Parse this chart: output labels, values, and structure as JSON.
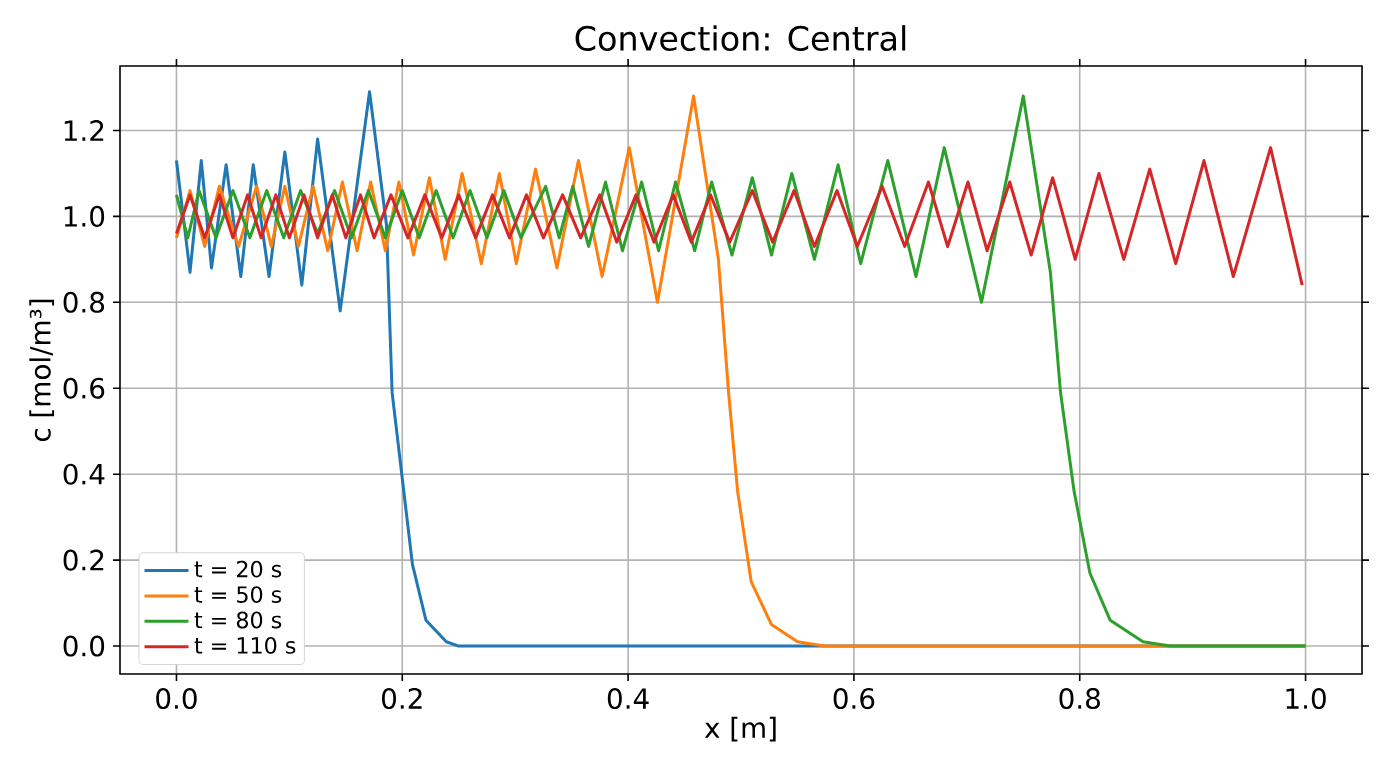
{
  "chart_data": {
    "type": "line",
    "title": "Convection: Central",
    "xlabel": "x [m]",
    "ylabel": "c [mol/m³]",
    "xlim": [
      -0.05,
      1.05
    ],
    "ylim": [
      -0.065,
      1.35
    ],
    "xticks": [
      {
        "value": 0,
        "label": "0.0"
      },
      {
        "value": 0.2,
        "label": "0.2"
      },
      {
        "value": 0.4,
        "label": "0.4"
      },
      {
        "value": 0.6,
        "label": "0.6"
      },
      {
        "value": 0.8,
        "label": "0.8"
      },
      {
        "value": 1,
        "label": "1.0"
      }
    ],
    "yticks": [
      {
        "value": 0,
        "label": "0.0"
      },
      {
        "value": 0.2,
        "label": "0.2"
      },
      {
        "value": 0.4,
        "label": "0.4"
      },
      {
        "value": 0.6,
        "label": "0.6"
      },
      {
        "value": 0.8,
        "label": "0.8"
      },
      {
        "value": 1,
        "label": "1.0"
      },
      {
        "value": 1.2,
        "label": "1.2"
      }
    ],
    "grid": true,
    "legend": "bottom left",
    "series": [
      {
        "name": "t = 20 s",
        "color": "#1f77b4",
        "x": [
          0,
          0.012,
          0.022,
          0.031,
          0.044,
          0.057,
          0.068,
          0.082,
          0.096,
          0.111,
          0.125,
          0.145,
          0.171,
          0.186,
          0.191,
          0.2,
          0.209,
          0.221,
          0.239,
          0.25,
          1.0
        ],
        "values": [
          1.13,
          0.87,
          1.13,
          0.88,
          1.12,
          0.86,
          1.12,
          0.86,
          1.15,
          0.84,
          1.18,
          0.78,
          1.29,
          0.98,
          0.59,
          0.39,
          0.19,
          0.06,
          0.01,
          0.0,
          0.0
        ]
      },
      {
        "name": "t = 50 s",
        "color": "#ff7f0e",
        "x": [
          0,
          0.012,
          0.025,
          0.038,
          0.055,
          0.071,
          0.084,
          0.096,
          0.108,
          0.121,
          0.134,
          0.147,
          0.16,
          0.172,
          0.185,
          0.197,
          0.21,
          0.224,
          0.238,
          0.253,
          0.27,
          0.286,
          0.301,
          0.318,
          0.337,
          0.356,
          0.377,
          0.401,
          0.426,
          0.458,
          0.48,
          0.489,
          0.497,
          0.509,
          0.527,
          0.55,
          0.574,
          1.0
        ],
        "values": [
          0.95,
          1.06,
          0.93,
          1.07,
          0.93,
          1.07,
          0.93,
          1.07,
          0.93,
          1.07,
          0.92,
          1.08,
          0.92,
          1.08,
          0.92,
          1.08,
          0.91,
          1.09,
          0.9,
          1.1,
          0.89,
          1.1,
          0.89,
          1.11,
          0.88,
          1.13,
          0.86,
          1.16,
          0.8,
          1.28,
          0.9,
          0.59,
          0.36,
          0.15,
          0.05,
          0.01,
          0.0,
          0.0
        ]
      },
      {
        "name": "t = 80 s",
        "color": "#2ca02c",
        "x": [
          0,
          0.01,
          0.02,
          0.035,
          0.05,
          0.065,
          0.08,
          0.095,
          0.11,
          0.125,
          0.14,
          0.155,
          0.17,
          0.185,
          0.2,
          0.215,
          0.23,
          0.245,
          0.26,
          0.275,
          0.29,
          0.305,
          0.327,
          0.339,
          0.351,
          0.365,
          0.38,
          0.395,
          0.412,
          0.427,
          0.442,
          0.459,
          0.474,
          0.492,
          0.51,
          0.527,
          0.545,
          0.565,
          0.586,
          0.606,
          0.63,
          0.655,
          0.68,
          0.713,
          0.75,
          0.774,
          0.783,
          0.795,
          0.809,
          0.827,
          0.856,
          0.88,
          1.0
        ],
        "values": [
          1.05,
          0.95,
          1.06,
          0.95,
          1.06,
          0.95,
          1.06,
          0.95,
          1.06,
          0.96,
          1.06,
          0.95,
          1.06,
          0.95,
          1.06,
          0.95,
          1.06,
          0.95,
          1.06,
          0.95,
          1.06,
          0.95,
          1.07,
          0.95,
          1.07,
          0.93,
          1.08,
          0.92,
          1.08,
          0.92,
          1.08,
          0.92,
          1.08,
          0.91,
          1.09,
          0.91,
          1.1,
          0.9,
          1.12,
          0.89,
          1.13,
          0.86,
          1.16,
          0.8,
          1.28,
          0.87,
          0.59,
          0.36,
          0.17,
          0.06,
          0.01,
          0.0,
          0.0
        ]
      },
      {
        "name": "t = 110 s",
        "color": "#d62728",
        "x": [
          0,
          0.012,
          0.025,
          0.038,
          0.05,
          0.063,
          0.075,
          0.088,
          0.1,
          0.113,
          0.125,
          0.138,
          0.15,
          0.163,
          0.175,
          0.19,
          0.205,
          0.22,
          0.235,
          0.25,
          0.265,
          0.28,
          0.295,
          0.31,
          0.325,
          0.342,
          0.358,
          0.375,
          0.39,
          0.407,
          0.423,
          0.44,
          0.456,
          0.473,
          0.49,
          0.51,
          0.528,
          0.547,
          0.565,
          0.585,
          0.603,
          0.625,
          0.645,
          0.666,
          0.683,
          0.701,
          0.718,
          0.738,
          0.757,
          0.776,
          0.796,
          0.817,
          0.839,
          0.862,
          0.885,
          0.91,
          0.936,
          0.969,
          0.997
        ],
        "values": [
          0.96,
          1.05,
          0.95,
          1.05,
          0.95,
          1.05,
          0.95,
          1.05,
          0.95,
          1.05,
          0.95,
          1.05,
          0.95,
          1.05,
          0.95,
          1.05,
          0.95,
          1.05,
          0.95,
          1.05,
          0.95,
          1.05,
          0.95,
          1.05,
          0.95,
          1.05,
          0.95,
          1.05,
          0.94,
          1.05,
          0.94,
          1.05,
          0.94,
          1.05,
          0.94,
          1.06,
          0.94,
          1.06,
          0.93,
          1.06,
          0.93,
          1.07,
          0.93,
          1.08,
          0.93,
          1.08,
          0.92,
          1.08,
          0.91,
          1.09,
          0.9,
          1.1,
          0.9,
          1.11,
          0.89,
          1.13,
          0.86,
          1.16,
          0.84
        ]
      }
    ]
  }
}
